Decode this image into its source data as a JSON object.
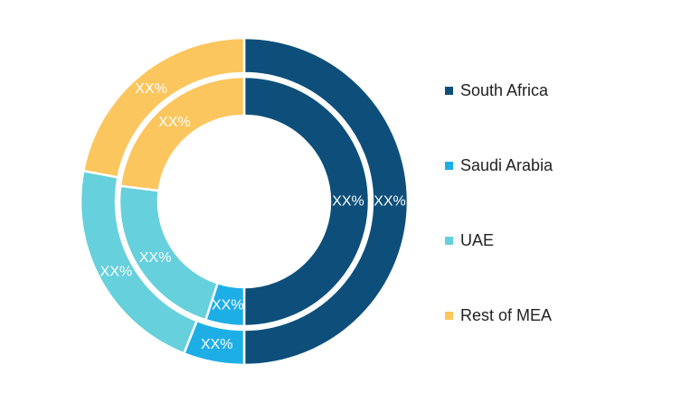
{
  "chart_data": {
    "type": "pie",
    "style": "double-donut",
    "categories": [
      "South Africa",
      "Saudi Arabia",
      "UAE",
      "Rest of MEA"
    ],
    "series": [
      {
        "ring": "outer",
        "values": [
          50,
          6,
          22,
          22
        ],
        "labels": [
          "XX%",
          "XX%",
          "XX%",
          "XX%"
        ]
      },
      {
        "ring": "inner",
        "values": [
          50,
          5,
          22,
          23
        ],
        "labels": [
          "XX%",
          "XX%",
          "XX%",
          "XX%"
        ]
      }
    ],
    "colors": [
      "#0d4f7a",
      "#1eaee6",
      "#66d0dc",
      "#fcc65e"
    ],
    "legend": {
      "position": "right",
      "entries": [
        "South Africa",
        "Saudi Arabia",
        "UAE",
        "Rest of MEA"
      ]
    },
    "title": "",
    "xlabel": "",
    "ylabel": ""
  }
}
